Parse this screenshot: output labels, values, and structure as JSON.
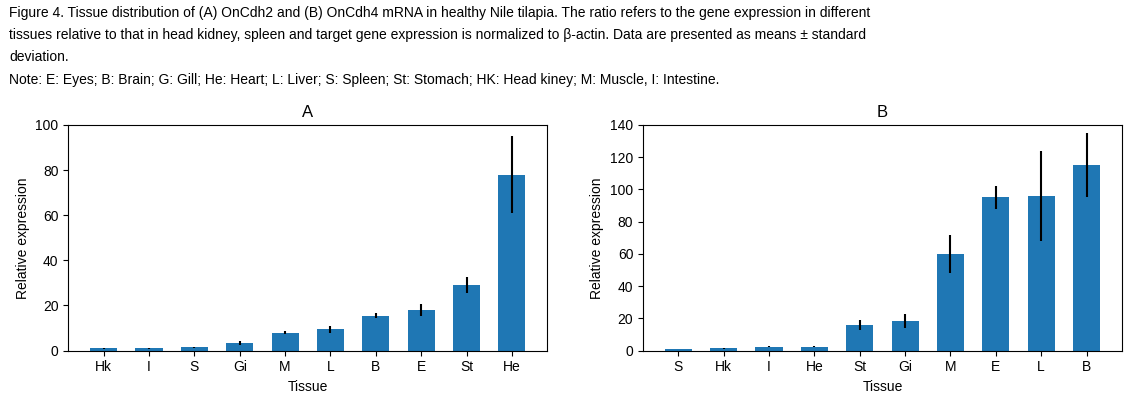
{
  "annotations": [
    "Figure 4. Tissue distribution of (A) OnCdh2 and (B) OnCdh4 mRNA in healthy Nile tilapia. The ratio refers to the gene expression in different",
    "tissues relative to that in head kidney, spleen and target gene expression is normalized to β-actin. Data are presented as means ± standard",
    "deviation.",
    "Note: E: Eyes; B: Brain; G: Gill; He: Heart; L: Liver; S: Spleen; St: Stomach; HK: Head kiney; M: Muscle, I: Intestine."
  ],
  "chart_data": [
    {
      "type": "bar",
      "title": "A",
      "categories": [
        "Hk",
        "I",
        "S",
        "Gi",
        "M",
        "L",
        "B",
        "E",
        "St",
        "He"
      ],
      "values": [
        1.0,
        1.0,
        1.5,
        3.5,
        8.0,
        9.5,
        15.5,
        18.0,
        29.0,
        78.0
      ],
      "errors": [
        0.3,
        0.3,
        0.3,
        0.8,
        0.8,
        1.5,
        1.2,
        2.5,
        3.5,
        17.0
      ],
      "xlabel": "Tissue",
      "ylabel": "Relative expression",
      "ylim": [
        0,
        100
      ],
      "yticks": [
        0,
        20,
        40,
        60,
        80,
        100
      ]
    },
    {
      "type": "bar",
      "title": "B",
      "categories": [
        "S",
        "Hk",
        "I",
        "He",
        "St",
        "Gi",
        "M",
        "E",
        "L",
        "B"
      ],
      "values": [
        1.0,
        1.5,
        2.5,
        2.5,
        16.0,
        18.5,
        60.0,
        95.0,
        96.0,
        115.0
      ],
      "errors": [
        0.3,
        0.3,
        0.5,
        0.5,
        3.0,
        4.5,
        12.0,
        7.0,
        28.0,
        20.0
      ],
      "xlabel": "Tissue",
      "ylabel": "Relative expression",
      "ylim": [
        0,
        140
      ],
      "yticks": [
        0,
        20,
        40,
        60,
        80,
        100,
        120,
        140
      ]
    }
  ]
}
